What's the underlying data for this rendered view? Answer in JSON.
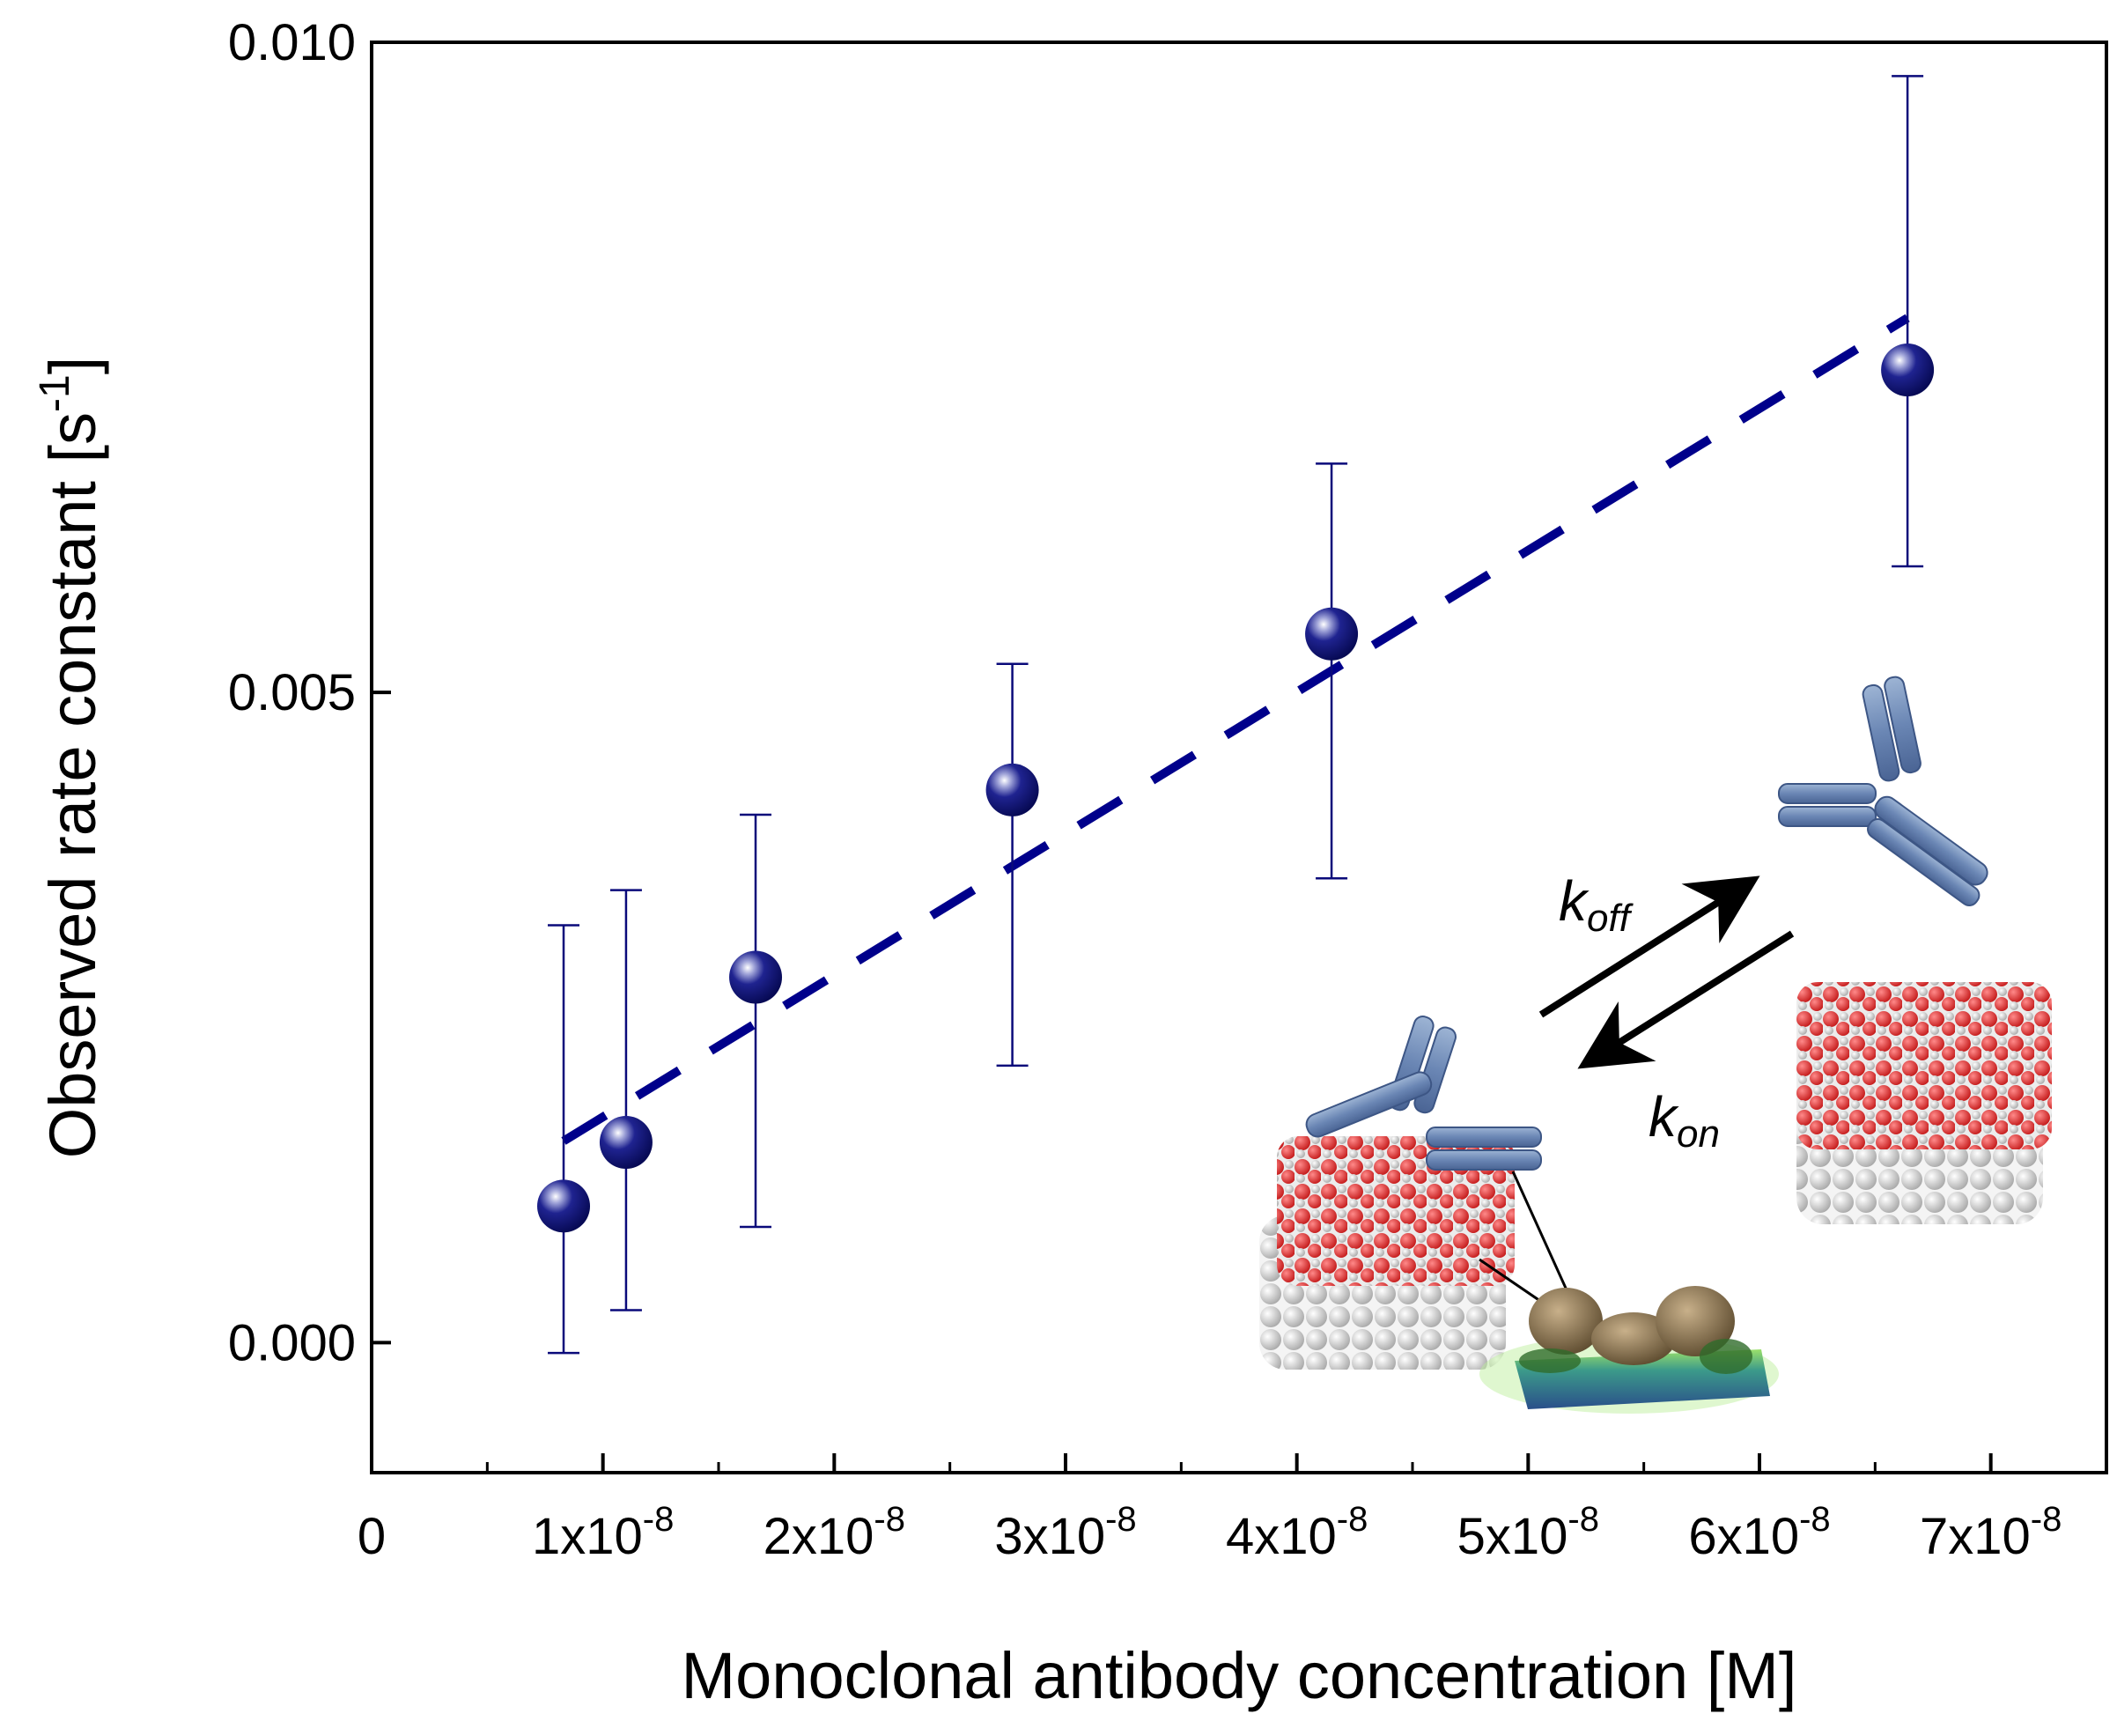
{
  "chart_data": {
    "type": "scatter",
    "xlabel": "Monoclonal antibody concentration [M]",
    "ylabel": "Observed rate constant [s",
    "ylabel_sup": "-1",
    "ylabel_end": "]",
    "xlim": [
      0,
      7.5e-08
    ],
    "ylim": [
      -0.001,
      0.01
    ],
    "x_ticks": [
      {
        "value": 0,
        "mant": "0",
        "exp": ""
      },
      {
        "value": 1e-08,
        "mant": "1x10",
        "exp": "-8"
      },
      {
        "value": 2e-08,
        "mant": "2x10",
        "exp": "-8"
      },
      {
        "value": 3e-08,
        "mant": "3x10",
        "exp": "-8"
      },
      {
        "value": 4e-08,
        "mant": "4x10",
        "exp": "-8"
      },
      {
        "value": 5e-08,
        "mant": "5x10",
        "exp": "-8"
      },
      {
        "value": 6e-08,
        "mant": "6x10",
        "exp": "-8"
      },
      {
        "value": 7e-08,
        "mant": "7x10",
        "exp": "-8"
      }
    ],
    "y_ticks": [
      {
        "value": 0,
        "label": "0.000"
      },
      {
        "value": 0.005,
        "label": "0.005"
      },
      {
        "value": 0.01,
        "label": "0.010"
      }
    ],
    "series": [
      {
        "name": "measurements",
        "x": [
          8.3e-09,
          1.1e-08,
          1.66e-08,
          2.77e-08,
          4.15e-08,
          6.64e-08
        ],
        "y": [
          0.00105,
          0.00154,
          0.00281,
          0.00425,
          0.00545,
          0.00748
        ],
        "err_low": [
          -8e-05,
          0.00025,
          0.00089,
          0.00213,
          0.00357,
          0.00597
        ],
        "err_high": [
          0.00321,
          0.00348,
          0.00406,
          0.00522,
          0.00676,
          0.00974
        ],
        "color": "#0a0a7a"
      }
    ],
    "fit": {
      "style": "dashed",
      "color": "#00008b",
      "x": [
        8.3e-09,
        6.64e-08
      ],
      "y": [
        0.00155,
        0.00788
      ]
    },
    "annotation": {
      "k_off": {
        "main": "k",
        "sub": "off"
      },
      "k_on": {
        "main": "k",
        "sub": "on"
      }
    }
  }
}
